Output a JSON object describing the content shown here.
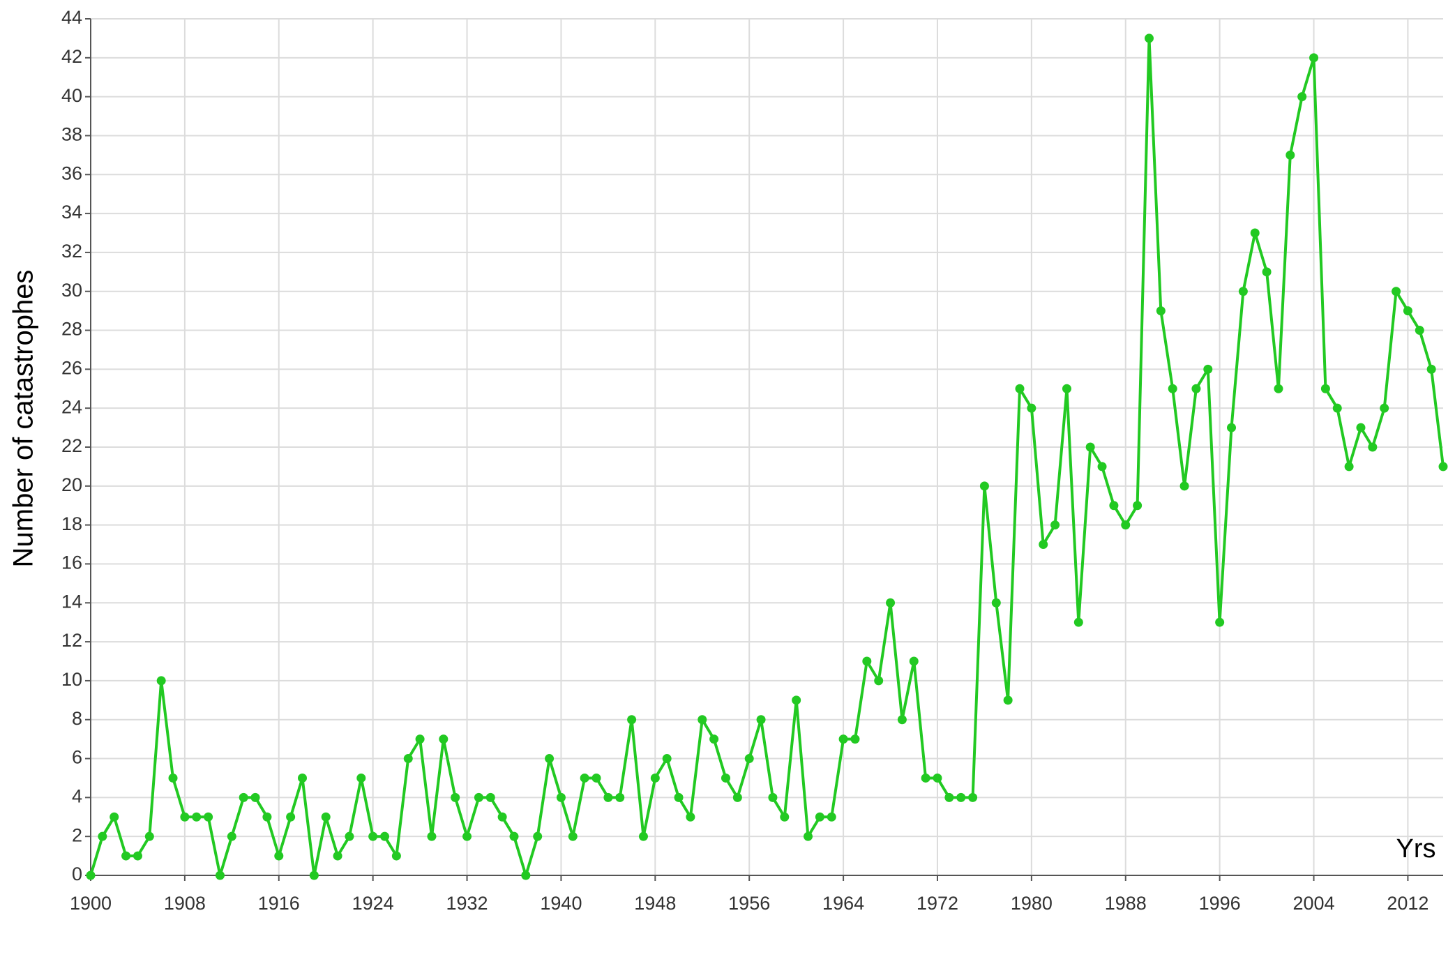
{
  "chart_data": {
    "type": "line",
    "y_label": "Number of catastrophes",
    "x_label": "Yrs",
    "color": "#22c922",
    "grid": true,
    "x": [
      1900,
      1901,
      1902,
      1903,
      1904,
      1905,
      1906,
      1907,
      1908,
      1909,
      1910,
      1911,
      1912,
      1913,
      1914,
      1915,
      1916,
      1917,
      1918,
      1919,
      1920,
      1921,
      1922,
      1923,
      1924,
      1925,
      1926,
      1927,
      1928,
      1929,
      1930,
      1931,
      1932,
      1933,
      1934,
      1935,
      1936,
      1937,
      1938,
      1939,
      1940,
      1941,
      1942,
      1943,
      1944,
      1945,
      1946,
      1947,
      1948,
      1949,
      1950,
      1951,
      1952,
      1953,
      1954,
      1955,
      1956,
      1957,
      1958,
      1959,
      1960,
      1961,
      1962,
      1963,
      1964,
      1965,
      1966,
      1967,
      1968,
      1969,
      1970,
      1971,
      1972,
      1973,
      1974,
      1975,
      1976,
      1977,
      1978,
      1979,
      1980,
      1981,
      1982,
      1983,
      1984,
      1985,
      1986,
      1987,
      1988,
      1989,
      1990,
      1991,
      1992,
      1993,
      1994,
      1995,
      1996,
      1997,
      1998,
      1999,
      2000,
      2001,
      2002,
      2003,
      2004,
      2005,
      2006,
      2007,
      2008,
      2009,
      2010,
      2011,
      2012,
      2013,
      2014,
      2015
    ],
    "values": [
      0,
      2,
      3,
      1,
      1,
      2,
      10,
      5,
      3,
      3,
      3,
      0,
      2,
      4,
      4,
      3,
      1,
      3,
      5,
      0,
      3,
      1,
      2,
      5,
      2,
      2,
      1,
      6,
      7,
      2,
      7,
      4,
      2,
      4,
      4,
      3,
      2,
      0,
      2,
      6,
      4,
      2,
      5,
      5,
      4,
      4,
      8,
      2,
      5,
      6,
      4,
      3,
      8,
      7,
      5,
      4,
      6,
      8,
      4,
      3,
      9,
      2,
      3,
      3,
      7,
      7,
      11,
      10,
      14,
      8,
      11,
      5,
      5,
      4,
      4,
      4,
      20,
      14,
      9,
      25,
      24,
      17,
      18,
      25,
      13,
      22,
      21,
      19,
      18,
      19,
      43,
      29,
      25,
      20,
      25,
      26,
      13,
      23,
      30,
      33,
      31,
      25,
      37,
      40,
      42,
      25,
      24,
      21,
      23,
      22,
      24,
      30,
      29,
      28,
      26,
      21
    ],
    "xlim": [
      1900,
      2015
    ],
    "xticks": [
      1900,
      1908,
      1916,
      1924,
      1932,
      1940,
      1948,
      1956,
      1964,
      1972,
      1980,
      1988,
      1996,
      2004,
      2012
    ],
    "ylim": [
      0,
      44
    ],
    "yticks": [
      0,
      2,
      4,
      6,
      8,
      10,
      12,
      14,
      16,
      18,
      20,
      22,
      24,
      26,
      28,
      30,
      32,
      34,
      36,
      38,
      40,
      42,
      44
    ]
  }
}
